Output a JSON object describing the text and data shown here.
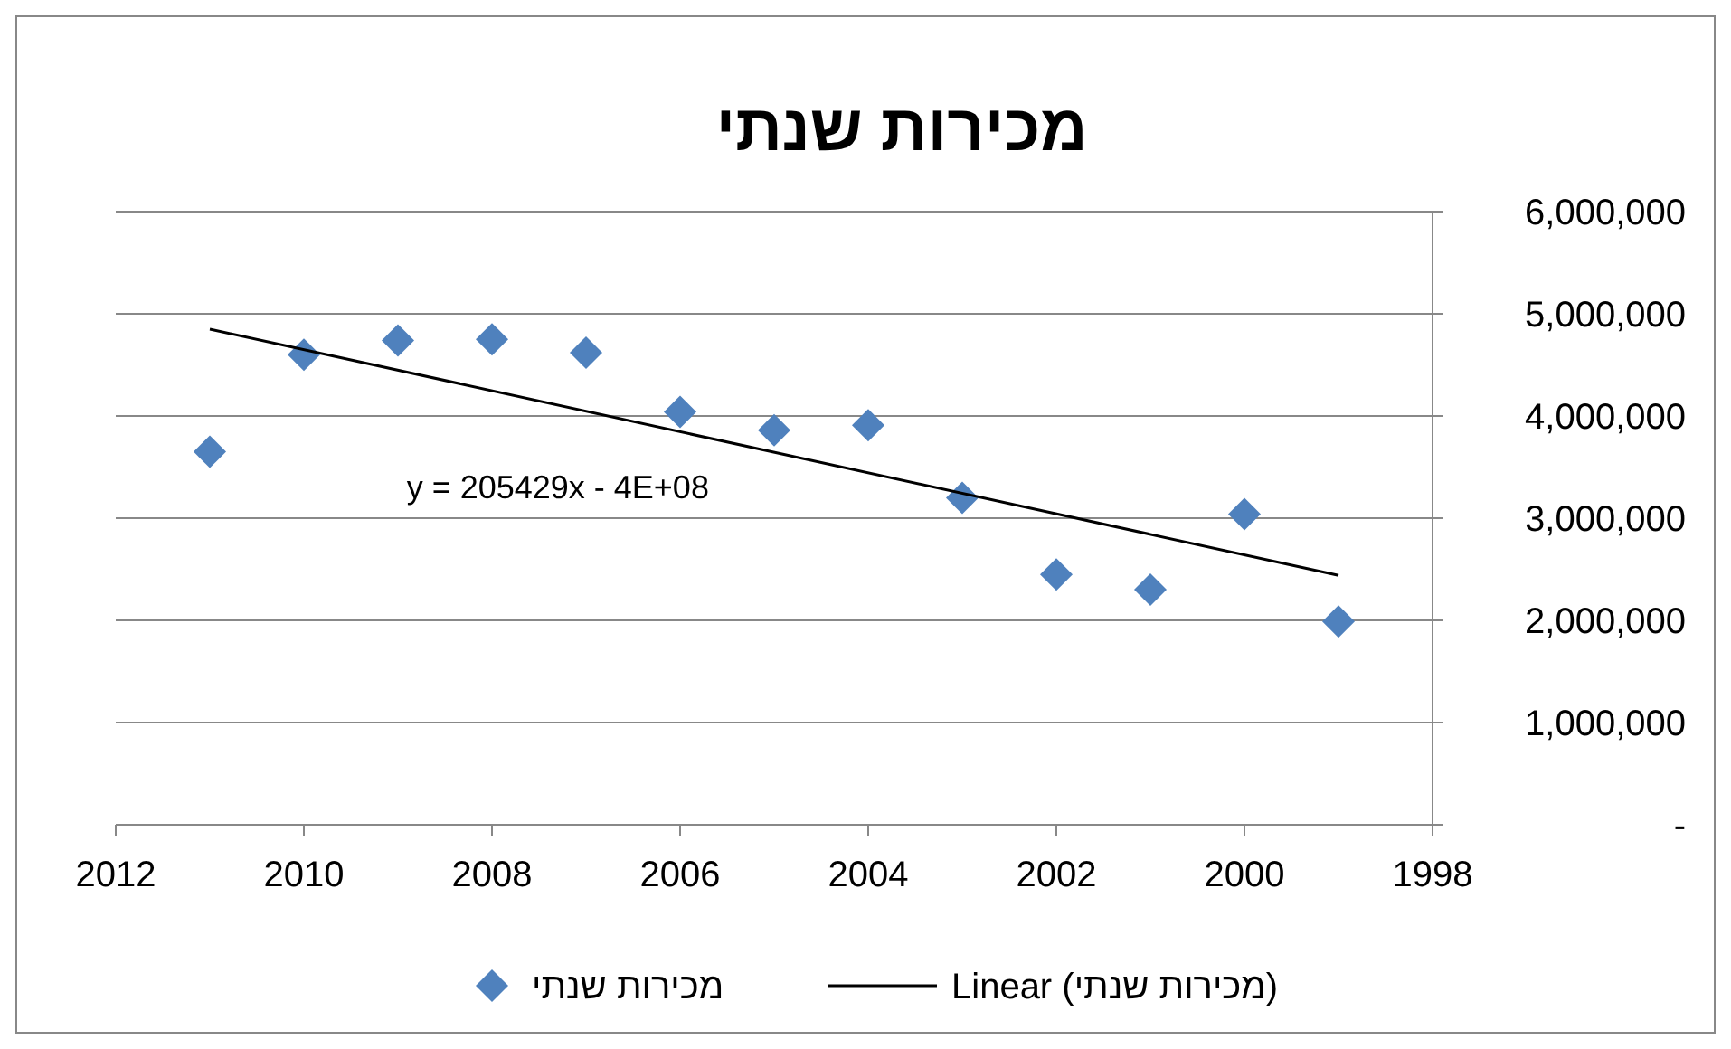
{
  "chart_data": {
    "type": "scatter",
    "title": "מכירות שנתי",
    "x": [
      2011,
      2010,
      2009,
      2008,
      2007,
      2006,
      2005,
      2004,
      2003,
      2002,
      2001,
      2000,
      1999
    ],
    "series": [
      {
        "name": "מכירות שנתי",
        "color": "#4f81bd",
        "marker": "diamond",
        "values": [
          3650000,
          4600000,
          4740000,
          4750000,
          4620000,
          4040000,
          3860000,
          3910000,
          3200000,
          2450000,
          2300000,
          3040000,
          1990000
        ]
      },
      {
        "name": "Linear (מכירות שנתי)",
        "type": "line",
        "color": "#000000",
        "line_style": "solid",
        "x": [
          2011,
          1999
        ],
        "values": [
          4850000,
          2440000
        ]
      }
    ],
    "xlim": [
      2012,
      1998
    ],
    "xticks": [
      2012,
      2010,
      2008,
      2006,
      2004,
      2002,
      2000,
      1998
    ],
    "ylim": [
      0,
      6000000
    ],
    "yticks": [
      {
        "value": 0,
        "label": "-"
      },
      {
        "value": 1000000,
        "label": "1,000,000"
      },
      {
        "value": 2000000,
        "label": "2,000,000"
      },
      {
        "value": 3000000,
        "label": "3,000,000"
      },
      {
        "value": 4000000,
        "label": "4,000,000"
      },
      {
        "value": 5000000,
        "label": "5,000,000"
      },
      {
        "value": 6000000,
        "label": "6,000,000"
      }
    ],
    "grid": "y",
    "legend": "bottom",
    "annotations": [
      "y = 205429x - 4E+08"
    ]
  }
}
